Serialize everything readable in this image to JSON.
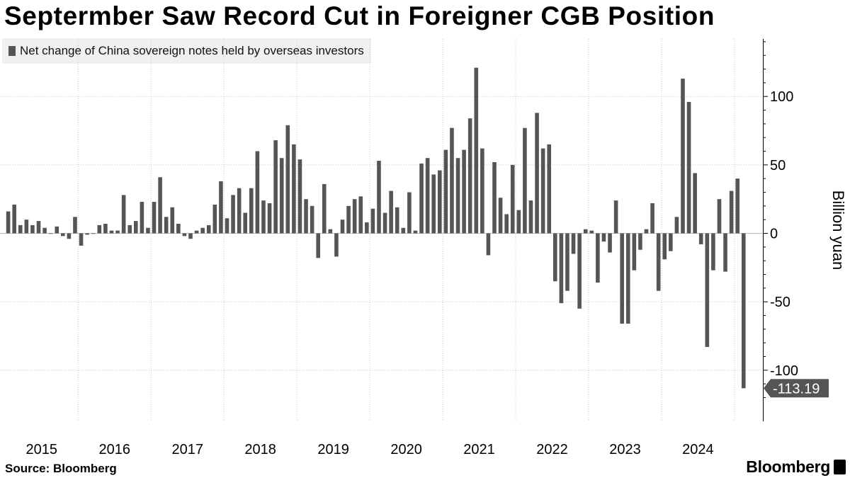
{
  "title": "Septermber Saw Record Cut in Foreigner CGB Position",
  "source": "Source: Bloomberg",
  "brand": "Bloomberg",
  "icons": {
    "logo": "bloomberg-terminal-icon"
  },
  "colors": {
    "bar": "#555555",
    "callout": "#555555",
    "background": "#ffffff"
  },
  "chart_data": {
    "type": "bar",
    "legend": "Net change of China sovereign notes held by overseas investors",
    "legend_placement": "top-left",
    "ylabel": "Billion yuan",
    "ylim": [
      -128,
      143
    ],
    "yticks": [
      100,
      50,
      0,
      -50,
      -100
    ],
    "xlabel": "",
    "x_tick_labels": [
      "2015",
      "2016",
      "2017",
      "2018",
      "2019",
      "2020",
      "2021",
      "2022",
      "2023",
      "2024"
    ],
    "grid": true,
    "last_value_label": "-113.19",
    "start": "2014-01",
    "end": "2024-09",
    "frequency": "monthly",
    "values": [
      16,
      21,
      6,
      10,
      6,
      9,
      4,
      0,
      5,
      -2,
      -4,
      12,
      -9,
      -1,
      0,
      6,
      7,
      2,
      2,
      28,
      6,
      9,
      23,
      4,
      23,
      41,
      12,
      19,
      7,
      -2,
      -4,
      2,
      4,
      6,
      21,
      38,
      11,
      28,
      33,
      15,
      33,
      60,
      24,
      22,
      68,
      55,
      79,
      65,
      54,
      25,
      20,
      -18,
      36,
      3,
      -17,
      10,
      20,
      25,
      27,
      8,
      18,
      53,
      15,
      31,
      19,
      4,
      30,
      2,
      51,
      55,
      43,
      46,
      61,
      77,
      55,
      61,
      84,
      121,
      62,
      -16,
      52,
      26,
      14,
      50,
      17,
      77,
      24,
      88,
      62,
      65,
      -35,
      -51,
      -42,
      -15,
      -55,
      3,
      2,
      -36,
      -6,
      -14,
      24,
      -66,
      -66,
      -27,
      -12,
      3,
      22,
      -42,
      -19,
      -13,
      12,
      113,
      96,
      44,
      -8,
      -83,
      -27,
      25,
      -28,
      31,
      40,
      -113.19
    ]
  }
}
